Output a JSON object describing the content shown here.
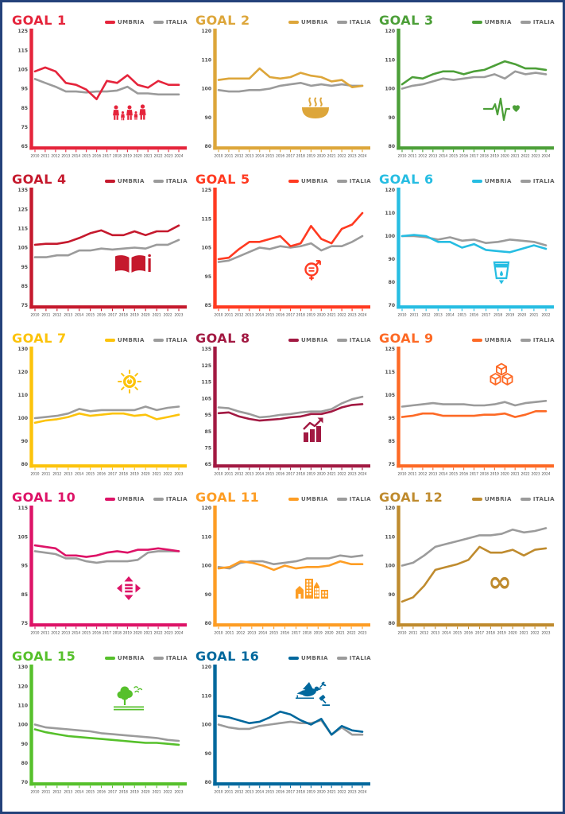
{
  "page": {
    "background": "#ffffff",
    "border_color": "#24427A"
  },
  "italia_color": "#9b9b9b",
  "chart_data": [
    {
      "type": "line",
      "title": "GOAL 1",
      "color": "#E5243B",
      "icon": "family-icon",
      "x": [
        2010,
        2011,
        2012,
        2013,
        2014,
        2015,
        2016,
        2017,
        2018,
        2019,
        2020,
        2021,
        2022,
        2023,
        2024
      ],
      "yticks": [
        65,
        75,
        85,
        95,
        105,
        115,
        125
      ],
      "ylim": [
        65,
        125
      ],
      "series": [
        {
          "name": "UMBRIA",
          "values": [
            104,
            106,
            104,
            98,
            97,
            94.5,
            89.5,
            99,
            98,
            102,
            97,
            95.5,
            99,
            97,
            97
          ]
        },
        {
          "name": "ITALIA",
          "values": [
            100,
            98,
            96,
            93.5,
            93.5,
            93,
            93.5,
            93.5,
            94,
            96,
            92.5,
            92.5,
            92,
            92,
            92
          ]
        }
      ]
    },
    {
      "type": "line",
      "title": "GOAL 2",
      "color": "#DDA63A",
      "icon": "food-bowl-icon",
      "x": [
        2010,
        2011,
        2012,
        2013,
        2014,
        2015,
        2016,
        2017,
        2018,
        2019,
        2020,
        2021,
        2022,
        2023,
        2024
      ],
      "yticks": [
        80,
        90,
        100,
        110,
        120
      ],
      "ylim": [
        80,
        120
      ],
      "series": [
        {
          "name": "UMBRIA",
          "values": [
            103,
            103.5,
            103.5,
            103.5,
            107,
            104,
            103.5,
            104,
            105.5,
            104.5,
            104,
            102.5,
            103,
            100.5,
            101
          ]
        },
        {
          "name": "ITALIA",
          "values": [
            99.5,
            99,
            99,
            99.5,
            99.5,
            100,
            101,
            101.5,
            102,
            101,
            101.5,
            101,
            101.5,
            101,
            101
          ]
        }
      ]
    },
    {
      "type": "line",
      "title": "GOAL 3",
      "color": "#4C9F38",
      "icon": "health-pulse-icon",
      "x": [
        2010,
        2011,
        2012,
        2013,
        2014,
        2015,
        2016,
        2017,
        2018,
        2019,
        2020,
        2021,
        2022,
        2023,
        2024
      ],
      "yticks": [
        80,
        90,
        100,
        110,
        120
      ],
      "ylim": [
        80,
        120
      ],
      "series": [
        {
          "name": "UMBRIA",
          "values": [
            101.5,
            104,
            103.5,
            105,
            106,
            106,
            105,
            106,
            106.5,
            108,
            109.5,
            108.5,
            107,
            107,
            106.5
          ]
        },
        {
          "name": "ITALIA",
          "values": [
            100,
            101,
            101.5,
            102.5,
            103.5,
            103,
            103.5,
            104,
            104,
            105,
            103.5,
            106,
            105,
            105.5,
            105
          ]
        }
      ]
    },
    {
      "type": "line",
      "title": "GOAL 4",
      "color": "#C5192D",
      "icon": "education-book-icon",
      "x": [
        2010,
        2011,
        2012,
        2013,
        2014,
        2015,
        2016,
        2017,
        2018,
        2019,
        2020,
        2021,
        2022,
        2023
      ],
      "yticks": [
        75,
        85,
        95,
        105,
        115,
        125,
        135
      ],
      "ylim": [
        75,
        135
      ],
      "series": [
        {
          "name": "UMBRIA",
          "values": [
            106.5,
            107,
            107,
            108,
            110,
            112.5,
            114,
            111.5,
            111.5,
            113.5,
            111.5,
            113.5,
            113.5,
            116.5
          ]
        },
        {
          "name": "ITALIA",
          "values": [
            100,
            100,
            101,
            101,
            103.5,
            103.5,
            104.5,
            104,
            104.5,
            105,
            104.5,
            106.5,
            106.5,
            109
          ]
        }
      ]
    },
    {
      "type": "line",
      "title": "GOAL 5",
      "color": "#FF3A21",
      "icon": "gender-equality-icon",
      "x": [
        2010,
        2011,
        2012,
        2013,
        2014,
        2015,
        2016,
        2017,
        2018,
        2019,
        2020,
        2021,
        2022,
        2023,
        2024
      ],
      "yticks": [
        85,
        95,
        105,
        115,
        125
      ],
      "ylim": [
        85,
        125
      ],
      "series": [
        {
          "name": "UMBRIA",
          "values": [
            101,
            101.5,
            104.5,
            107,
            107,
            108,
            109,
            105.5,
            106.5,
            112.5,
            108,
            106.5,
            111.5,
            113,
            117
          ]
        },
        {
          "name": "ITALIA",
          "values": [
            100,
            100.5,
            102,
            103.5,
            105,
            104.5,
            105.5,
            105,
            105.5,
            106.5,
            104,
            105.5,
            105.5,
            107,
            109
          ]
        }
      ]
    },
    {
      "type": "line",
      "title": "GOAL 6",
      "color": "#26BDE2",
      "icon": "clean-water-icon",
      "x": [
        2010,
        2011,
        2012,
        2013,
        2014,
        2015,
        2016,
        2017,
        2018,
        2019,
        2020,
        2021,
        2022
      ],
      "yticks": [
        70,
        80,
        90,
        100,
        110,
        120
      ],
      "ylim": [
        70,
        120
      ],
      "series": [
        {
          "name": "UMBRIA",
          "values": [
            100,
            100.5,
            100,
            97.5,
            97.5,
            95,
            96.5,
            94,
            93.5,
            93,
            94.5,
            96,
            94.5
          ]
        },
        {
          "name": "ITALIA",
          "values": [
            100,
            100,
            99.5,
            98.5,
            99.5,
            98,
            98.5,
            97,
            97.5,
            98.5,
            98,
            97.5,
            96
          ]
        }
      ]
    },
    {
      "type": "line",
      "title": "GOAL 7",
      "color": "#FCC30B",
      "icon": "energy-sun-icon",
      "x": [
        2010,
        2011,
        2012,
        2013,
        2014,
        2015,
        2016,
        2017,
        2018,
        2019,
        2020,
        2021,
        2022,
        2023
      ],
      "yticks": [
        80,
        90,
        100,
        110,
        120,
        130
      ],
      "ylim": [
        80,
        130
      ],
      "series": [
        {
          "name": "UMBRIA",
          "values": [
            98,
            99,
            99.5,
            100.5,
            102,
            101,
            101.5,
            102,
            102,
            101,
            101.5,
            99.5,
            100.5,
            101.5
          ]
        },
        {
          "name": "ITALIA",
          "values": [
            100,
            100.5,
            101,
            102,
            104,
            103,
            103.5,
            103.5,
            103.5,
            103.5,
            105,
            103.5,
            104.5,
            105
          ]
        }
      ]
    },
    {
      "type": "line",
      "title": "GOAL 8",
      "color": "#A21942",
      "icon": "economic-growth-icon",
      "x": [
        2010,
        2011,
        2012,
        2013,
        2014,
        2015,
        2016,
        2017,
        2018,
        2019,
        2020,
        2021,
        2022,
        2023,
        2024
      ],
      "yticks": [
        65,
        75,
        85,
        95,
        105,
        115,
        125,
        135
      ],
      "ylim": [
        65,
        135
      ],
      "series": [
        {
          "name": "UMBRIA",
          "values": [
            96,
            96.5,
            94,
            92.5,
            91.5,
            92,
            92.5,
            93.5,
            94,
            95.5,
            95.5,
            97,
            99.5,
            101,
            101.5
          ]
        },
        {
          "name": "ITALIA",
          "values": [
            99.5,
            99,
            97,
            95.5,
            93.5,
            94,
            95,
            95.5,
            96.5,
            97,
            97,
            98.5,
            102,
            104.5,
            106
          ]
        }
      ]
    },
    {
      "type": "line",
      "title": "GOAL 9",
      "color": "#FD6925",
      "icon": "industry-cubes-icon",
      "x": [
        2010,
        2011,
        2012,
        2013,
        2014,
        2015,
        2016,
        2017,
        2018,
        2019,
        2020,
        2021,
        2022,
        2023,
        2024
      ],
      "yticks": [
        75,
        85,
        95,
        105,
        115,
        125
      ],
      "ylim": [
        75,
        125
      ],
      "series": [
        {
          "name": "UMBRIA",
          "values": [
            95.5,
            96,
            97,
            97,
            96,
            96,
            96,
            96,
            96.5,
            96.5,
            97,
            95.5,
            96.5,
            98,
            98
          ]
        },
        {
          "name": "ITALIA",
          "values": [
            100,
            100.5,
            101,
            101.5,
            101,
            101,
            101,
            100.5,
            100.5,
            101,
            102,
            100.5,
            101.5,
            102,
            102.5
          ]
        }
      ]
    },
    {
      "type": "line",
      "title": "GOAL 10",
      "color": "#DD1367",
      "icon": "reduced-inequalities-icon",
      "x": [
        2010,
        2011,
        2012,
        2013,
        2014,
        2015,
        2016,
        2017,
        2018,
        2019,
        2020,
        2021,
        2022,
        2023,
        2024
      ],
      "yticks": [
        75,
        85,
        95,
        105,
        115
      ],
      "ylim": [
        75,
        115
      ],
      "series": [
        {
          "name": "UMBRIA",
          "values": [
            102,
            101.5,
            101,
            98.5,
            98.5,
            98,
            98.5,
            99.5,
            100,
            99.5,
            100.5,
            100.5,
            101,
            100.5,
            100
          ]
        },
        {
          "name": "ITALIA",
          "values": [
            100,
            99.5,
            99,
            97.5,
            97.5,
            96.5,
            96,
            96.5,
            96.5,
            96.5,
            97,
            99.5,
            100,
            100,
            100
          ]
        }
      ]
    },
    {
      "type": "line",
      "title": "GOAL 11",
      "color": "#FD9D24",
      "icon": "sustainable-city-icon",
      "x": [
        2010,
        2011,
        2012,
        2013,
        2014,
        2015,
        2016,
        2017,
        2018,
        2019,
        2020,
        2021,
        2022,
        2023
      ],
      "yticks": [
        80,
        90,
        100,
        110,
        120
      ],
      "ylim": [
        80,
        120
      ],
      "series": [
        {
          "name": "UMBRIA",
          "values": [
            99,
            99.5,
            101.5,
            101,
            100,
            98.5,
            100,
            99,
            99.5,
            99.5,
            100,
            101.5,
            100.5,
            100.5
          ]
        },
        {
          "name": "ITALIA",
          "values": [
            99.5,
            99,
            101,
            101.5,
            101.5,
            100.5,
            101,
            101.5,
            102.5,
            102.5,
            102.5,
            103.5,
            103,
            103.5
          ]
        }
      ]
    },
    {
      "type": "line",
      "title": "GOAL 12",
      "color": "#BF8B2E",
      "icon": "responsible-consumption-icon",
      "x": [
        2010,
        2011,
        2012,
        2013,
        2014,
        2015,
        2016,
        2017,
        2018,
        2019,
        2020,
        2021,
        2022,
        2023
      ],
      "yticks": [
        80,
        90,
        100,
        110,
        120
      ],
      "ylim": [
        80,
        120
      ],
      "series": [
        {
          "name": "UMBRIA",
          "values": [
            87.5,
            89,
            93,
            98.5,
            99.5,
            100.5,
            102,
            106.5,
            104.5,
            104.5,
            105.5,
            103.5,
            105.5,
            106
          ]
        },
        {
          "name": "ITALIA",
          "values": [
            100,
            101,
            103.5,
            106.5,
            107.5,
            108.5,
            109.5,
            110.5,
            110.5,
            111,
            112.5,
            111.5,
            112,
            113
          ]
        }
      ]
    },
    {
      "type": "line",
      "title": "GOAL 15",
      "color": "#56C02B",
      "icon": "life-on-land-icon",
      "x": [
        2010,
        2011,
        2012,
        2013,
        2014,
        2015,
        2016,
        2017,
        2018,
        2019,
        2020,
        2021,
        2022,
        2023
      ],
      "yticks": [
        70,
        80,
        90,
        100,
        110,
        120,
        130
      ],
      "ylim": [
        70,
        130
      ],
      "series": [
        {
          "name": "UMBRIA",
          "values": [
            97.5,
            96,
            95,
            94,
            93.5,
            93,
            92.5,
            92,
            91.5,
            91,
            90.5,
            90.5,
            90,
            89.5
          ]
        },
        {
          "name": "ITALIA",
          "values": [
            100,
            98.5,
            98,
            97.5,
            97,
            96.5,
            95.5,
            95,
            94.5,
            94,
            93.5,
            93,
            92,
            91.5
          ]
        }
      ]
    },
    {
      "type": "line",
      "title": "GOAL 16",
      "color": "#00689D",
      "icon": "peace-justice-icon",
      "x": [
        2010,
        2011,
        2012,
        2013,
        2014,
        2015,
        2016,
        2017,
        2018,
        2019,
        2020,
        2021,
        2022,
        2023,
        2024
      ],
      "yticks": [
        80,
        90,
        100,
        110,
        120
      ],
      "ylim": [
        80,
        120
      ],
      "series": [
        {
          "name": "UMBRIA",
          "values": [
            103,
            102.5,
            101.5,
            100.5,
            101,
            102.5,
            104.5,
            103.5,
            101.5,
            100,
            102,
            96.5,
            99.5,
            98,
            97.5
          ]
        },
        {
          "name": "ITALIA",
          "values": [
            100,
            99,
            98.5,
            98.5,
            99.5,
            100,
            100.5,
            101,
            100.5,
            100.5,
            101.5,
            96.5,
            99,
            96.5,
            96.5
          ]
        }
      ]
    }
  ]
}
